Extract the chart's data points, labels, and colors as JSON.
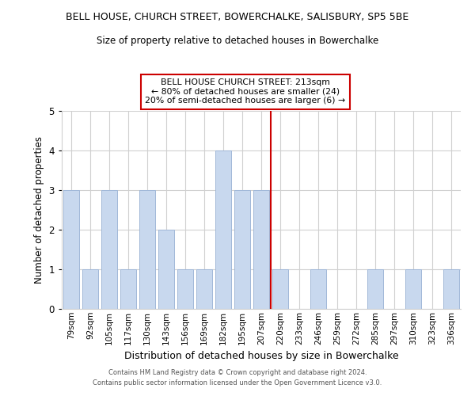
{
  "title": "BELL HOUSE, CHURCH STREET, BOWERCHALKE, SALISBURY, SP5 5BE",
  "subtitle": "Size of property relative to detached houses in Bowerchalke",
  "xlabel": "Distribution of detached houses by size in Bowerchalke",
  "ylabel": "Number of detached properties",
  "bar_labels": [
    "79sqm",
    "92sqm",
    "105sqm",
    "117sqm",
    "130sqm",
    "143sqm",
    "156sqm",
    "169sqm",
    "182sqm",
    "195sqm",
    "207sqm",
    "220sqm",
    "233sqm",
    "246sqm",
    "259sqm",
    "272sqm",
    "285sqm",
    "297sqm",
    "310sqm",
    "323sqm",
    "336sqm"
  ],
  "bar_values": [
    3,
    1,
    3,
    1,
    3,
    2,
    1,
    1,
    4,
    3,
    3,
    1,
    0,
    1,
    0,
    0,
    1,
    0,
    1,
    0,
    1
  ],
  "bar_color": "#c8d8ee",
  "bar_edge_color": "#a0b8d8",
  "reference_line_color": "#cc0000",
  "ylim": [
    0,
    5
  ],
  "yticks": [
    0,
    1,
    2,
    3,
    4,
    5
  ],
  "annotation_title": "BELL HOUSE CHURCH STREET: 213sqm",
  "annotation_line1": "← 80% of detached houses are smaller (24)",
  "annotation_line2": "20% of semi-detached houses are larger (6) →",
  "annotation_box_color": "#ffffff",
  "annotation_box_edge": "#cc0000",
  "footer_line1": "Contains HM Land Registry data © Crown copyright and database right 2024.",
  "footer_line2": "Contains public sector information licensed under the Open Government Licence v3.0.",
  "background_color": "#ffffff",
  "grid_color": "#d0d0d0"
}
